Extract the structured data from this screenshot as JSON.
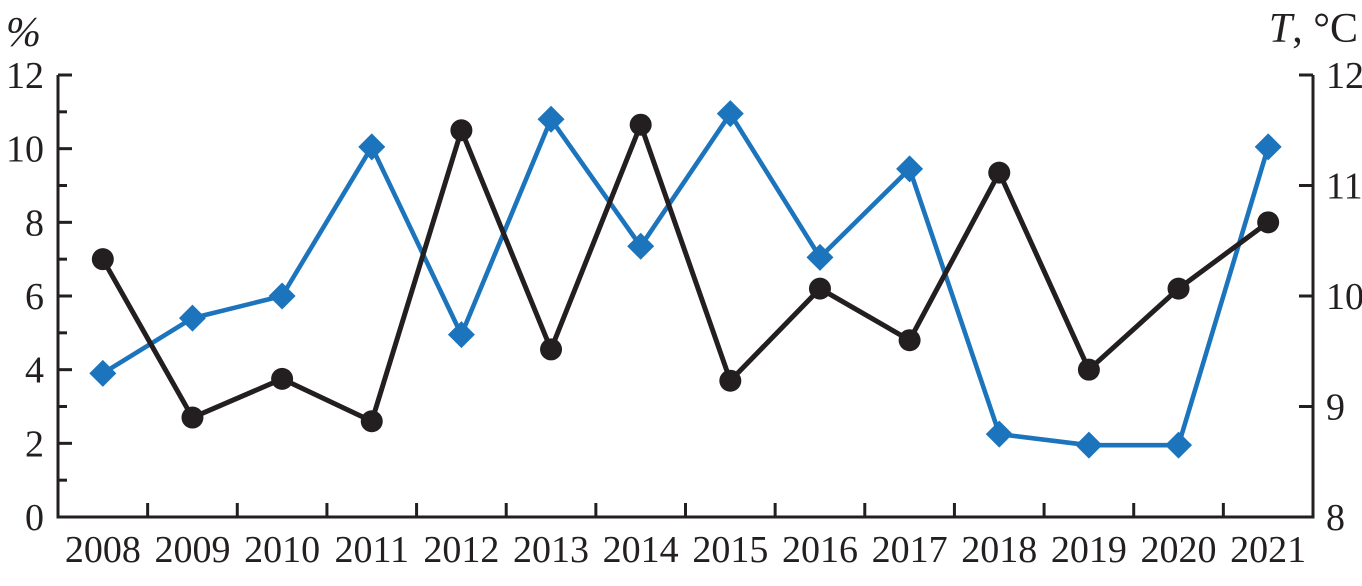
{
  "figure": {
    "left_axis_title": "%",
    "right_axis_title_italic": "T",
    "right_axis_title_rest": ", °C"
  },
  "colors": {
    "axis": "#231f20",
    "text": "#231f20",
    "percent_series": "#231f20",
    "temperature_series": "#1c75bc",
    "background": "#ffffff"
  },
  "chart_data": {
    "type": "line",
    "title": "",
    "x": [
      "2008",
      "2009",
      "2010",
      "2011",
      "2012",
      "2013",
      "2014",
      "2015",
      "2016",
      "2017",
      "2018",
      "2019",
      "2020",
      "2021"
    ],
    "series": [
      {
        "name": "Share, % (black line, filled circle markers, left axis)",
        "axis": "left",
        "marker": "circle",
        "color_key": "percent_series",
        "values": [
          7.0,
          2.7,
          3.75,
          2.6,
          10.5,
          4.55,
          10.65,
          3.7,
          6.2,
          4.8,
          9.35,
          4.0,
          6.2,
          8.0
        ]
      },
      {
        "name": "Temperature T, °C (blue line, filled diamond markers, right axis)",
        "axis": "right",
        "marker": "diamond",
        "color_key": "temperature_series",
        "values": [
          9.3,
          9.8,
          10.0,
          11.35,
          9.65,
          11.6,
          10.45,
          11.65,
          10.35,
          11.15,
          8.75,
          8.65,
          8.65,
          11.35
        ]
      }
    ],
    "left_axis": {
      "title": "%",
      "min": 0,
      "max": 12,
      "major_ticks": [
        0,
        2,
        4,
        6,
        8,
        10,
        12
      ],
      "minor_ticks": [
        1,
        3,
        5,
        7,
        9,
        11
      ]
    },
    "right_axis": {
      "title": "T, °C",
      "min": 8,
      "max": 12,
      "ticks": [
        8,
        9,
        10,
        11,
        12
      ]
    },
    "x_axis": {
      "tick_style": "boundary ticks between year labels",
      "labels_position": "below axis, centered between boundary ticks"
    },
    "grid": false,
    "legend": "none"
  }
}
